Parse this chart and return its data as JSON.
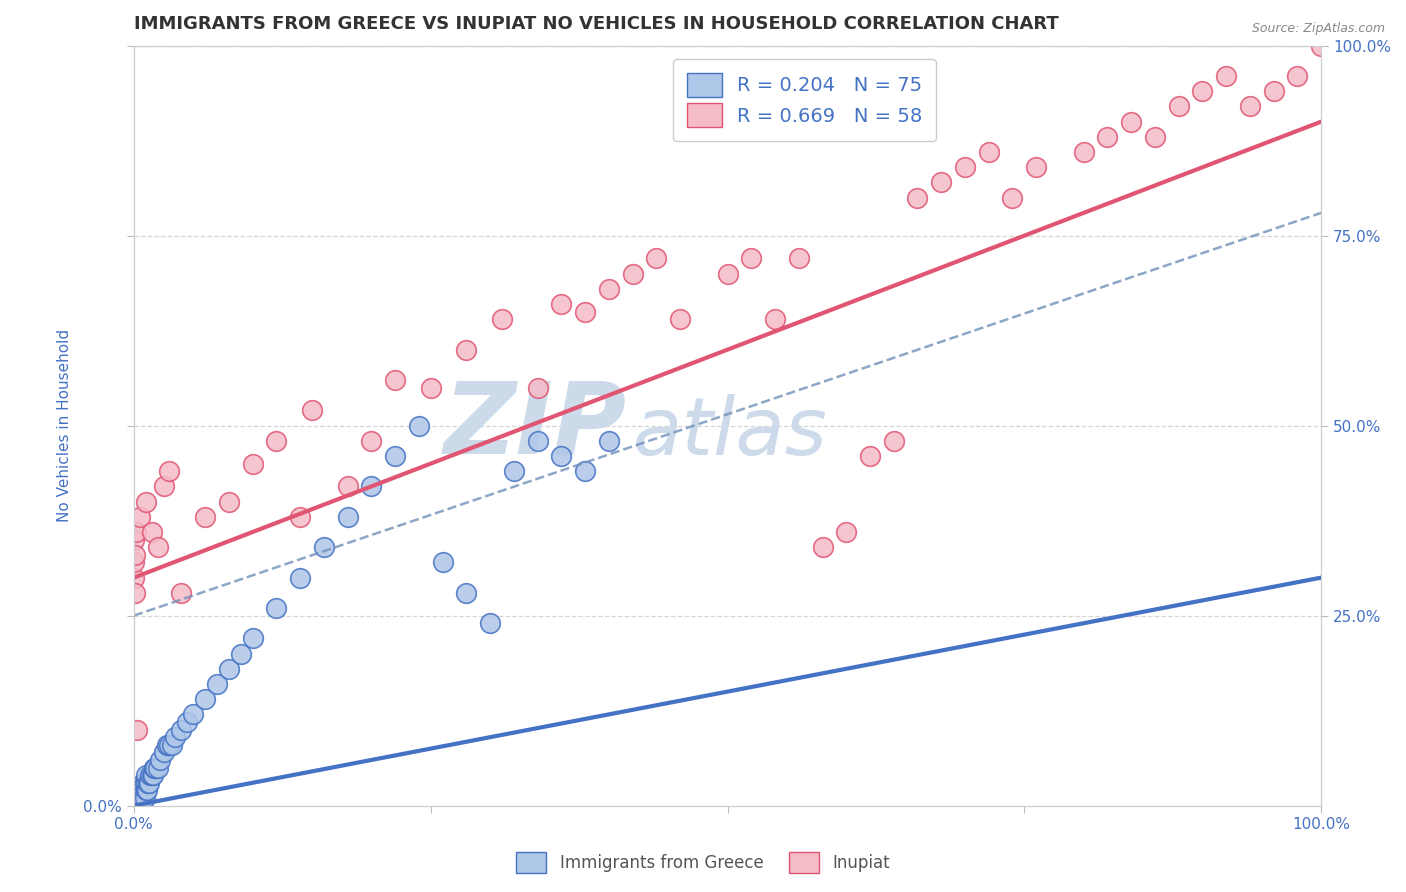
{
  "title": "IMMIGRANTS FROM GREECE VS INUPIAT NO VEHICLES IN HOUSEHOLD CORRELATION CHART",
  "source_text": "Source: ZipAtlas.com",
  "ylabel": "No Vehicles in Household",
  "xlim": [
    0.0,
    1.0
  ],
  "ylim": [
    0.0,
    1.0
  ],
  "bottom_legend": [
    "Immigrants from Greece",
    "Inupiat"
  ],
  "legend_r_greece": "R = 0.204",
  "legend_n_greece": "N = 75",
  "legend_r_inupiat": "R = 0.669",
  "legend_n_inupiat": "N = 58",
  "color_greece_fill": "#aec6e8",
  "color_greece_edge": "#4472c4",
  "color_inupiat_fill": "#f5bcc8",
  "color_inupiat_edge": "#e05572",
  "color_greece_trendline": "#4472c4",
  "color_inupiat_trendline": "#e05572",
  "color_dashed_line": "#7090b8",
  "watermark_zip": "ZIP",
  "watermark_atlas": "atlas",
  "watermark_color": "#ccdaea",
  "background_color": "#ffffff",
  "grid_color": "#cccccc",
  "title_color": "#333333",
  "axis_label_color": "#4472c4",
  "title_fontsize": 13,
  "axis_fontsize": 11,
  "tick_fontsize": 11,
  "greece_x": [
    0.0,
    0.0,
    0.0,
    0.001,
    0.001,
    0.001,
    0.001,
    0.001,
    0.001,
    0.001,
    0.002,
    0.002,
    0.002,
    0.002,
    0.002,
    0.003,
    0.003,
    0.003,
    0.003,
    0.004,
    0.004,
    0.004,
    0.005,
    0.005,
    0.005,
    0.005,
    0.006,
    0.006,
    0.007,
    0.007,
    0.008,
    0.008,
    0.009,
    0.009,
    0.01,
    0.01,
    0.01,
    0.011,
    0.012,
    0.013,
    0.014,
    0.015,
    0.016,
    0.017,
    0.018,
    0.02,
    0.022,
    0.025,
    0.028,
    0.03,
    0.032,
    0.035,
    0.04,
    0.045,
    0.05,
    0.06,
    0.07,
    0.08,
    0.09,
    0.1,
    0.12,
    0.14,
    0.16,
    0.18,
    0.2,
    0.22,
    0.24,
    0.26,
    0.28,
    0.3,
    0.32,
    0.34,
    0.36,
    0.38,
    0.4
  ],
  "greece_y": [
    0.0,
    0.0,
    0.0,
    0.0,
    0.0,
    0.0,
    0.0,
    0.0,
    0.01,
    0.02,
    0.0,
    0.0,
    0.0,
    0.01,
    0.02,
    0.0,
    0.0,
    0.01,
    0.02,
    0.0,
    0.01,
    0.02,
    0.0,
    0.0,
    0.01,
    0.02,
    0.01,
    0.02,
    0.01,
    0.02,
    0.01,
    0.03,
    0.01,
    0.03,
    0.02,
    0.03,
    0.04,
    0.02,
    0.03,
    0.03,
    0.04,
    0.04,
    0.04,
    0.05,
    0.05,
    0.05,
    0.06,
    0.07,
    0.08,
    0.08,
    0.08,
    0.09,
    0.1,
    0.11,
    0.12,
    0.14,
    0.16,
    0.18,
    0.2,
    0.22,
    0.26,
    0.3,
    0.34,
    0.38,
    0.42,
    0.46,
    0.5,
    0.32,
    0.28,
    0.24,
    0.44,
    0.48,
    0.46,
    0.44,
    0.48
  ],
  "inupiat_x": [
    0.0,
    0.0,
    0.0,
    0.001,
    0.001,
    0.002,
    0.003,
    0.005,
    0.01,
    0.015,
    0.02,
    0.025,
    0.03,
    0.04,
    0.06,
    0.08,
    0.1,
    0.12,
    0.14,
    0.15,
    0.18,
    0.2,
    0.22,
    0.25,
    0.28,
    0.31,
    0.34,
    0.36,
    0.38,
    0.4,
    0.42,
    0.44,
    0.46,
    0.5,
    0.52,
    0.54,
    0.56,
    0.58,
    0.6,
    0.62,
    0.64,
    0.66,
    0.68,
    0.7,
    0.72,
    0.74,
    0.76,
    0.8,
    0.82,
    0.84,
    0.86,
    0.88,
    0.9,
    0.92,
    0.94,
    0.96,
    0.98,
    1.0
  ],
  "inupiat_y": [
    0.3,
    0.32,
    0.35,
    0.28,
    0.33,
    0.36,
    0.1,
    0.38,
    0.4,
    0.36,
    0.34,
    0.42,
    0.44,
    0.28,
    0.38,
    0.4,
    0.45,
    0.48,
    0.38,
    0.52,
    0.42,
    0.48,
    0.56,
    0.55,
    0.6,
    0.64,
    0.55,
    0.66,
    0.65,
    0.68,
    0.7,
    0.72,
    0.64,
    0.7,
    0.72,
    0.64,
    0.72,
    0.34,
    0.36,
    0.46,
    0.48,
    0.8,
    0.82,
    0.84,
    0.86,
    0.8,
    0.84,
    0.86,
    0.88,
    0.9,
    0.88,
    0.92,
    0.94,
    0.96,
    0.92,
    0.94,
    0.96,
    1.0
  ],
  "greece_trendline_x": [
    0.0,
    1.0
  ],
  "greece_trendline_y": [
    0.0,
    0.3
  ],
  "inupiat_trendline_x": [
    0.0,
    1.0
  ],
  "inupiat_trendline_y": [
    0.3,
    0.9
  ],
  "dashed_line_x": [
    0.0,
    1.0
  ],
  "dashed_line_y": [
    0.25,
    0.78
  ]
}
